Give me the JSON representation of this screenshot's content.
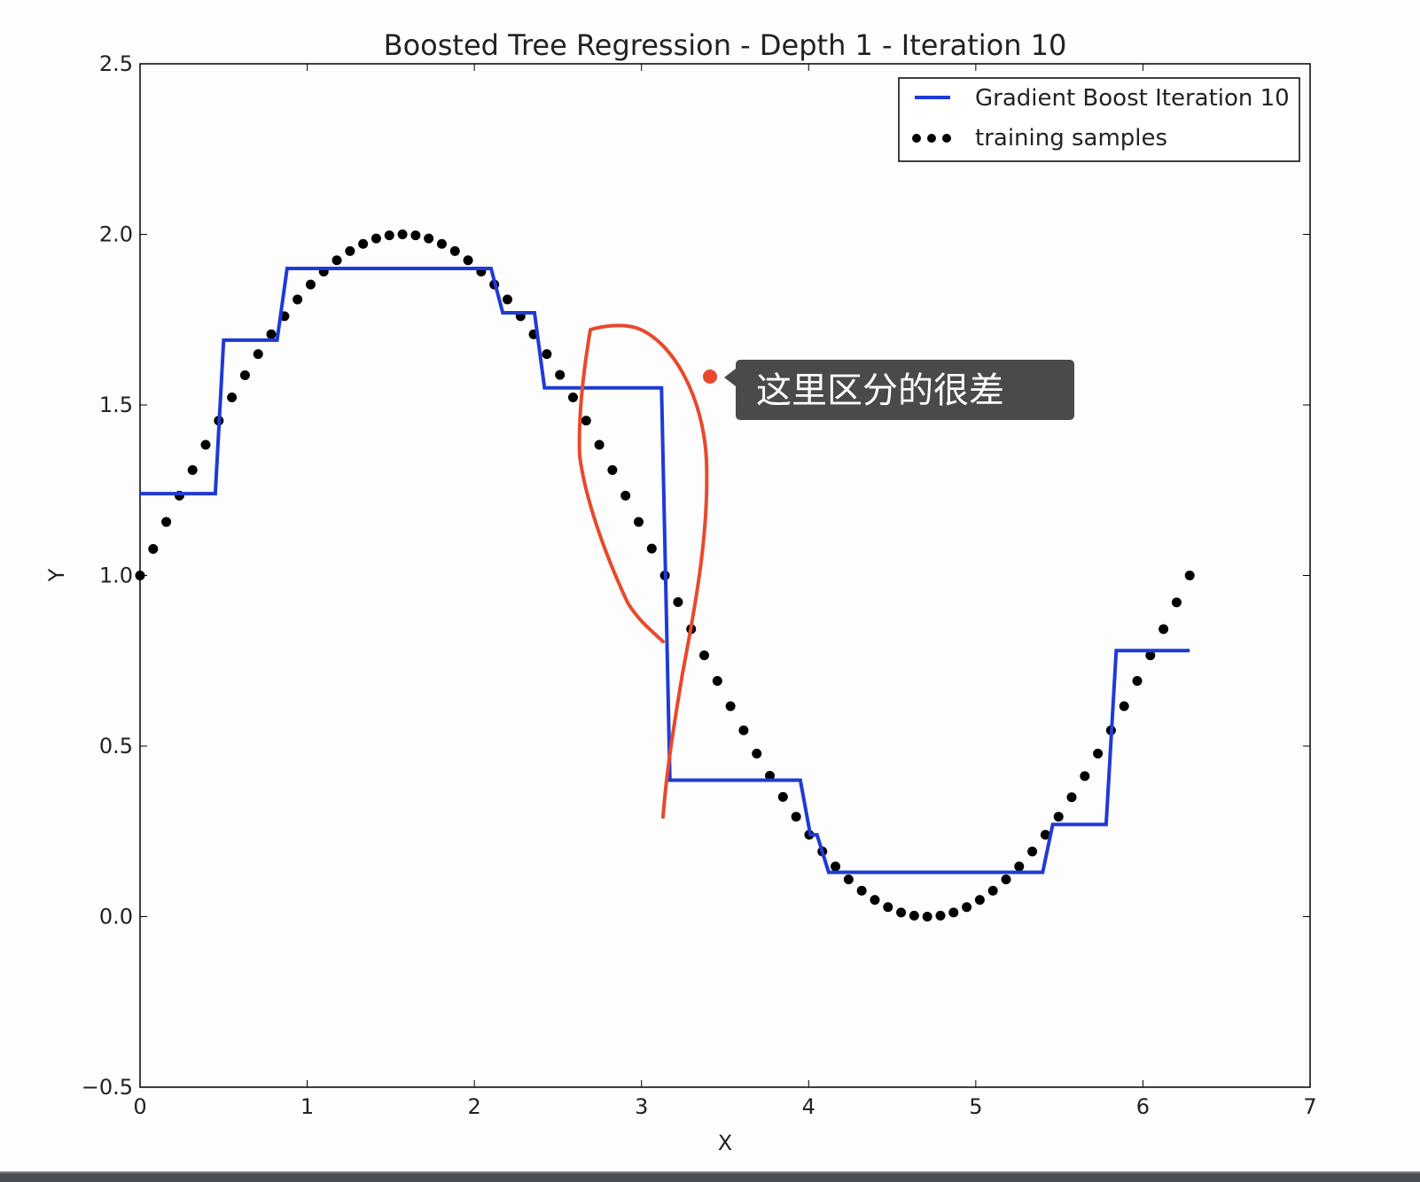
{
  "chart_data": {
    "type": "line",
    "title": "Boosted Tree Regression - Depth 1 - Iteration 10",
    "xlabel": "X",
    "ylabel": "Y",
    "xlim": [
      0,
      7
    ],
    "ylim": [
      -0.5,
      2.5
    ],
    "xticks": [
      "0",
      "1",
      "2",
      "3",
      "4",
      "5",
      "6",
      "7"
    ],
    "yticks": [
      "−0.5",
      "0.0",
      "0.5",
      "1.0",
      "1.5",
      "2.0",
      "2.5"
    ],
    "grid": false,
    "legend_position": "top-right",
    "series": [
      {
        "name": "Gradient Boost Iteration 10",
        "kind": "step-line",
        "color": "#1f3ad6",
        "points": [
          [
            0.0,
            1.24
          ],
          [
            0.45,
            1.24
          ],
          [
            0.5,
            1.69
          ],
          [
            0.82,
            1.69
          ],
          [
            0.88,
            1.9
          ],
          [
            2.1,
            1.9
          ],
          [
            2.17,
            1.77
          ],
          [
            2.36,
            1.77
          ],
          [
            2.42,
            1.55
          ],
          [
            3.12,
            1.55
          ],
          [
            3.17,
            0.4
          ],
          [
            3.95,
            0.4
          ],
          [
            4.01,
            0.24
          ],
          [
            4.05,
            0.24
          ],
          [
            4.12,
            0.13
          ],
          [
            5.4,
            0.13
          ],
          [
            5.46,
            0.27
          ],
          [
            5.78,
            0.27
          ],
          [
            5.84,
            0.78
          ],
          [
            6.28,
            0.78
          ]
        ]
      },
      {
        "name": "training samples",
        "kind": "scatter",
        "color": "#000000",
        "x_start": 0,
        "x_step": 0.0785,
        "count": 81,
        "function_note": "y = 1 + sin(x)",
        "y": [
          1.0,
          1.078,
          1.157,
          1.234,
          1.309,
          1.383,
          1.454,
          1.522,
          1.587,
          1.649,
          1.707,
          1.76,
          1.809,
          1.853,
          1.891,
          1.924,
          1.951,
          1.972,
          1.988,
          1.997,
          2.0,
          1.997,
          1.988,
          1.972,
          1.951,
          1.924,
          1.891,
          1.853,
          1.809,
          1.76,
          1.707,
          1.649,
          1.588,
          1.522,
          1.454,
          1.383,
          1.309,
          1.234,
          1.157,
          1.079,
          1.0,
          0.922,
          0.843,
          0.766,
          0.691,
          0.617,
          0.546,
          0.478,
          0.413,
          0.351,
          0.293,
          0.24,
          0.191,
          0.147,
          0.109,
          0.076,
          0.049,
          0.028,
          0.012,
          0.003,
          0.0,
          0.003,
          0.012,
          0.028,
          0.049,
          0.076,
          0.109,
          0.147,
          0.191,
          0.24,
          0.293,
          0.35,
          0.412,
          0.478,
          0.546,
          0.617,
          0.691,
          0.766,
          0.843,
          0.921,
          1.0
        ]
      }
    ]
  },
  "annotation": {
    "callout_text": "这里区分的很差",
    "marker_color": "#e8492c",
    "callout_bg": "#4a4a4a"
  }
}
